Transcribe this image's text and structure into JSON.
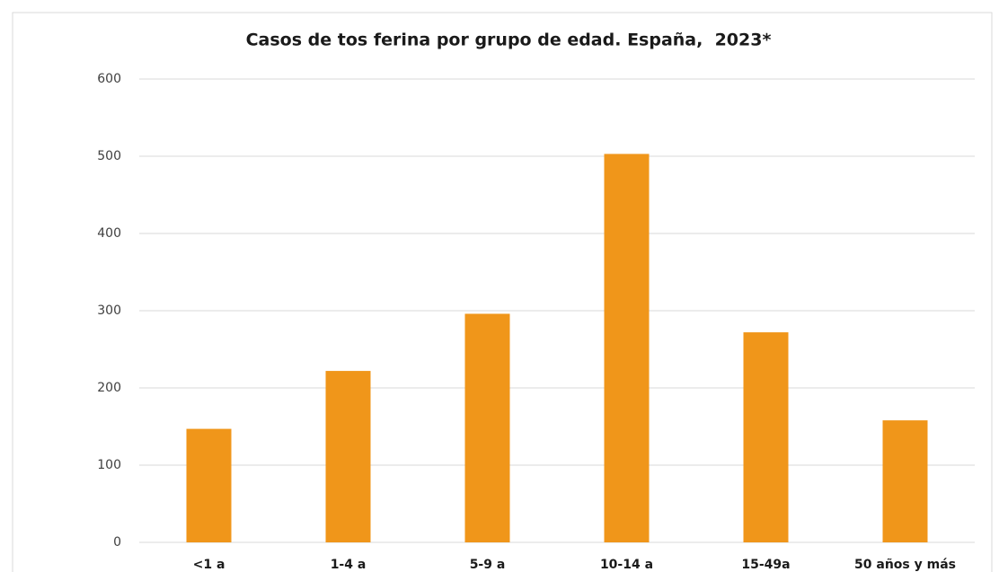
{
  "chart_data": {
    "type": "bar",
    "title": "Casos de tos ferina por grupo de edad. España,  2023*",
    "categories": [
      "<1 a",
      "1-4 a",
      "5-9 a",
      "10-14 a",
      "15-49a",
      "50 años y más"
    ],
    "values": [
      147,
      222,
      296,
      503,
      272,
      158
    ],
    "color": "#f0961a",
    "ylim": [
      0,
      600
    ],
    "yticks": [
      0,
      100,
      200,
      300,
      400,
      500,
      600
    ],
    "grid": true
  }
}
